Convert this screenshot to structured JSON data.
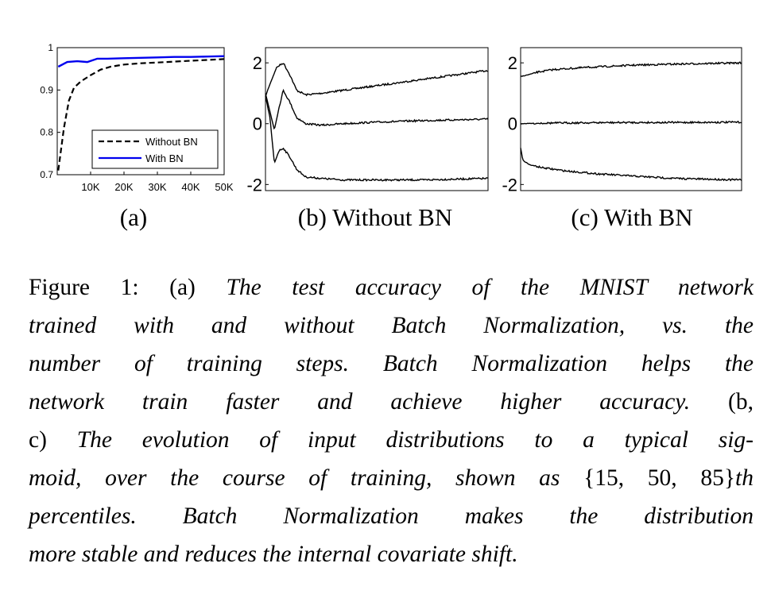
{
  "chart_data": [
    {
      "type": "line",
      "panel": "(a)",
      "x_ticks": [
        "10K",
        "20K",
        "30K",
        "40K",
        "50K"
      ],
      "y_ticks": [
        "0.7",
        "0.8",
        "0.9",
        "1"
      ],
      "ylim": [
        0.7,
        1.0
      ],
      "xlim": [
        0,
        50000
      ],
      "legend_position": "lower-right",
      "series": [
        {
          "name": "Without BN",
          "style": "dashed",
          "color": "#000000",
          "x": [
            300,
            2000,
            3500,
            5000,
            7000,
            10000,
            13000,
            16000,
            20000,
            25000,
            30000,
            35000,
            40000,
            45000,
            50000
          ],
          "values": [
            0.71,
            0.81,
            0.875,
            0.905,
            0.92,
            0.935,
            0.948,
            0.955,
            0.96,
            0.963,
            0.965,
            0.967,
            0.969,
            0.971,
            0.973
          ]
        },
        {
          "name": "With BN",
          "style": "solid",
          "color": "#0000ee",
          "x": [
            300,
            3000,
            6000,
            9000,
            12000,
            15000,
            20000,
            25000,
            30000,
            35000,
            40000,
            45000,
            50000
          ],
          "values": [
            0.955,
            0.966,
            0.968,
            0.966,
            0.974,
            0.974,
            0.975,
            0.976,
            0.977,
            0.978,
            0.978,
            0.979,
            0.98
          ]
        }
      ]
    },
    {
      "type": "line",
      "panel": "(b) Without BN",
      "y_ticks": [
        "2",
        "0",
        "-2"
      ],
      "ylim": [
        -2.2,
        2.5
      ],
      "series": [
        {
          "name": "85th",
          "x": [
            0,
            0.02,
            0.05,
            0.08,
            0.11,
            0.14,
            0.18,
            0.25,
            0.35,
            0.5,
            0.65,
            0.8,
            1.0
          ],
          "values": [
            0.9,
            1.3,
            1.85,
            2.0,
            1.6,
            1.1,
            0.95,
            1.0,
            1.1,
            1.25,
            1.4,
            1.55,
            1.75
          ]
        },
        {
          "name": "50th",
          "x": [
            0,
            0.02,
            0.04,
            0.06,
            0.08,
            0.11,
            0.14,
            0.18,
            0.25,
            0.35,
            0.5,
            0.7,
            1.0
          ],
          "values": [
            1.0,
            0.4,
            -0.2,
            0.5,
            1.1,
            0.7,
            0.2,
            0.0,
            -0.05,
            0.0,
            0.05,
            0.1,
            0.15
          ]
        },
        {
          "name": "15th",
          "x": [
            0,
            0.02,
            0.04,
            0.06,
            0.08,
            0.11,
            0.14,
            0.18,
            0.25,
            0.35,
            0.5,
            0.7,
            1.0
          ],
          "values": [
            0.9,
            0.2,
            -1.3,
            -0.9,
            -0.8,
            -1.1,
            -1.5,
            -1.75,
            -1.8,
            -1.85,
            -1.85,
            -1.85,
            -1.8
          ]
        }
      ]
    },
    {
      "type": "line",
      "panel": "(c) With BN",
      "y_ticks": [
        "2",
        "0",
        "-2"
      ],
      "ylim": [
        -2.2,
        2.5
      ],
      "series": [
        {
          "name": "85th",
          "x": [
            0,
            0.03,
            0.08,
            0.15,
            0.3,
            0.5,
            0.7,
            1.0
          ],
          "values": [
            1.55,
            1.6,
            1.7,
            1.78,
            1.85,
            1.92,
            1.96,
            2.0
          ]
        },
        {
          "name": "50th",
          "x": [
            0,
            0.1,
            0.3,
            0.5,
            0.7,
            1.0
          ],
          "values": [
            0.0,
            0.02,
            0.03,
            0.04,
            0.04,
            0.05
          ]
        },
        {
          "name": "15th",
          "x": [
            0,
            0.01,
            0.04,
            0.1,
            0.2,
            0.35,
            0.5,
            0.7,
            1.0
          ],
          "values": [
            -0.8,
            -1.2,
            -1.35,
            -1.45,
            -1.55,
            -1.65,
            -1.72,
            -1.8,
            -1.85
          ]
        }
      ]
    }
  ],
  "subfigure_labels": {
    "a": "(a)",
    "b": "(b) Without BN",
    "c": "(c) With BN"
  },
  "caption": {
    "lines": [
      [
        {
          "t": "Figure 1:  (a) ",
          "i": false
        },
        {
          "t": "The test accuracy of the MNIST network",
          "i": true
        }
      ],
      [
        {
          "t": "trained with and without Batch Normalization, vs.  the",
          "i": true
        }
      ],
      [
        {
          "t": "number of training steps. Batch Normalization helps the",
          "i": true
        }
      ],
      [
        {
          "t": "network train faster and achieve higher accuracy.",
          "i": true
        },
        {
          "t": "  (b,",
          "i": false
        }
      ],
      [
        {
          "t": "c) ",
          "i": false
        },
        {
          "t": "The evolution of input distributions to a typical sig-",
          "i": true
        }
      ],
      [
        {
          "t": "moid, over the course of training, shown as ",
          "i": true
        },
        {
          "t": "{15, 50, 85}",
          "i": false
        },
        {
          "t": "th",
          "i": true
        }
      ],
      [
        {
          "t": "percentiles. Batch Normalization makes the distribution",
          "i": true
        }
      ],
      [
        {
          "t": "more stable and reduces the internal covariate shift.",
          "i": true
        }
      ]
    ]
  }
}
